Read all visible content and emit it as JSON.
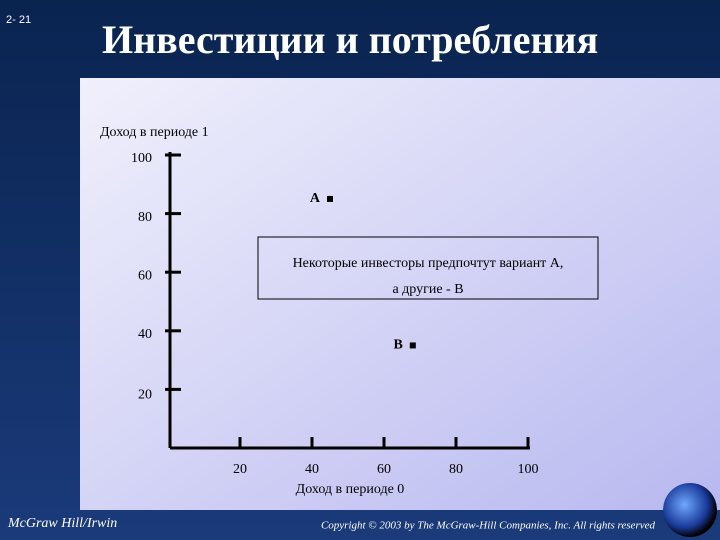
{
  "slide_number": "2- 21",
  "chart_data": {
    "type": "scatter",
    "title": "Инвестиции и потребления",
    "y_label": "Доход в периоде 1",
    "x_label": "Доход в периоде 0",
    "x": [
      45,
      68
    ],
    "values": [
      85,
      35
    ],
    "point_labels": [
      "A",
      "B"
    ],
    "color": "#000000",
    "xlim": [
      0,
      100
    ],
    "xticks": [
      20,
      40,
      60,
      80,
      100
    ],
    "ylim": [
      0,
      100
    ],
    "yticks": [
      20,
      40,
      60,
      80,
      100
    ],
    "annotation": [
      "Некоторые инвесторы предпочтут вариант А,",
      "а другие - В"
    ]
  },
  "footer": {
    "publisher": "McGraw Hill/Irwin",
    "copyright": "Copyright © 2003 by The McGraw-Hill Companies, Inc. All rights reserved"
  }
}
